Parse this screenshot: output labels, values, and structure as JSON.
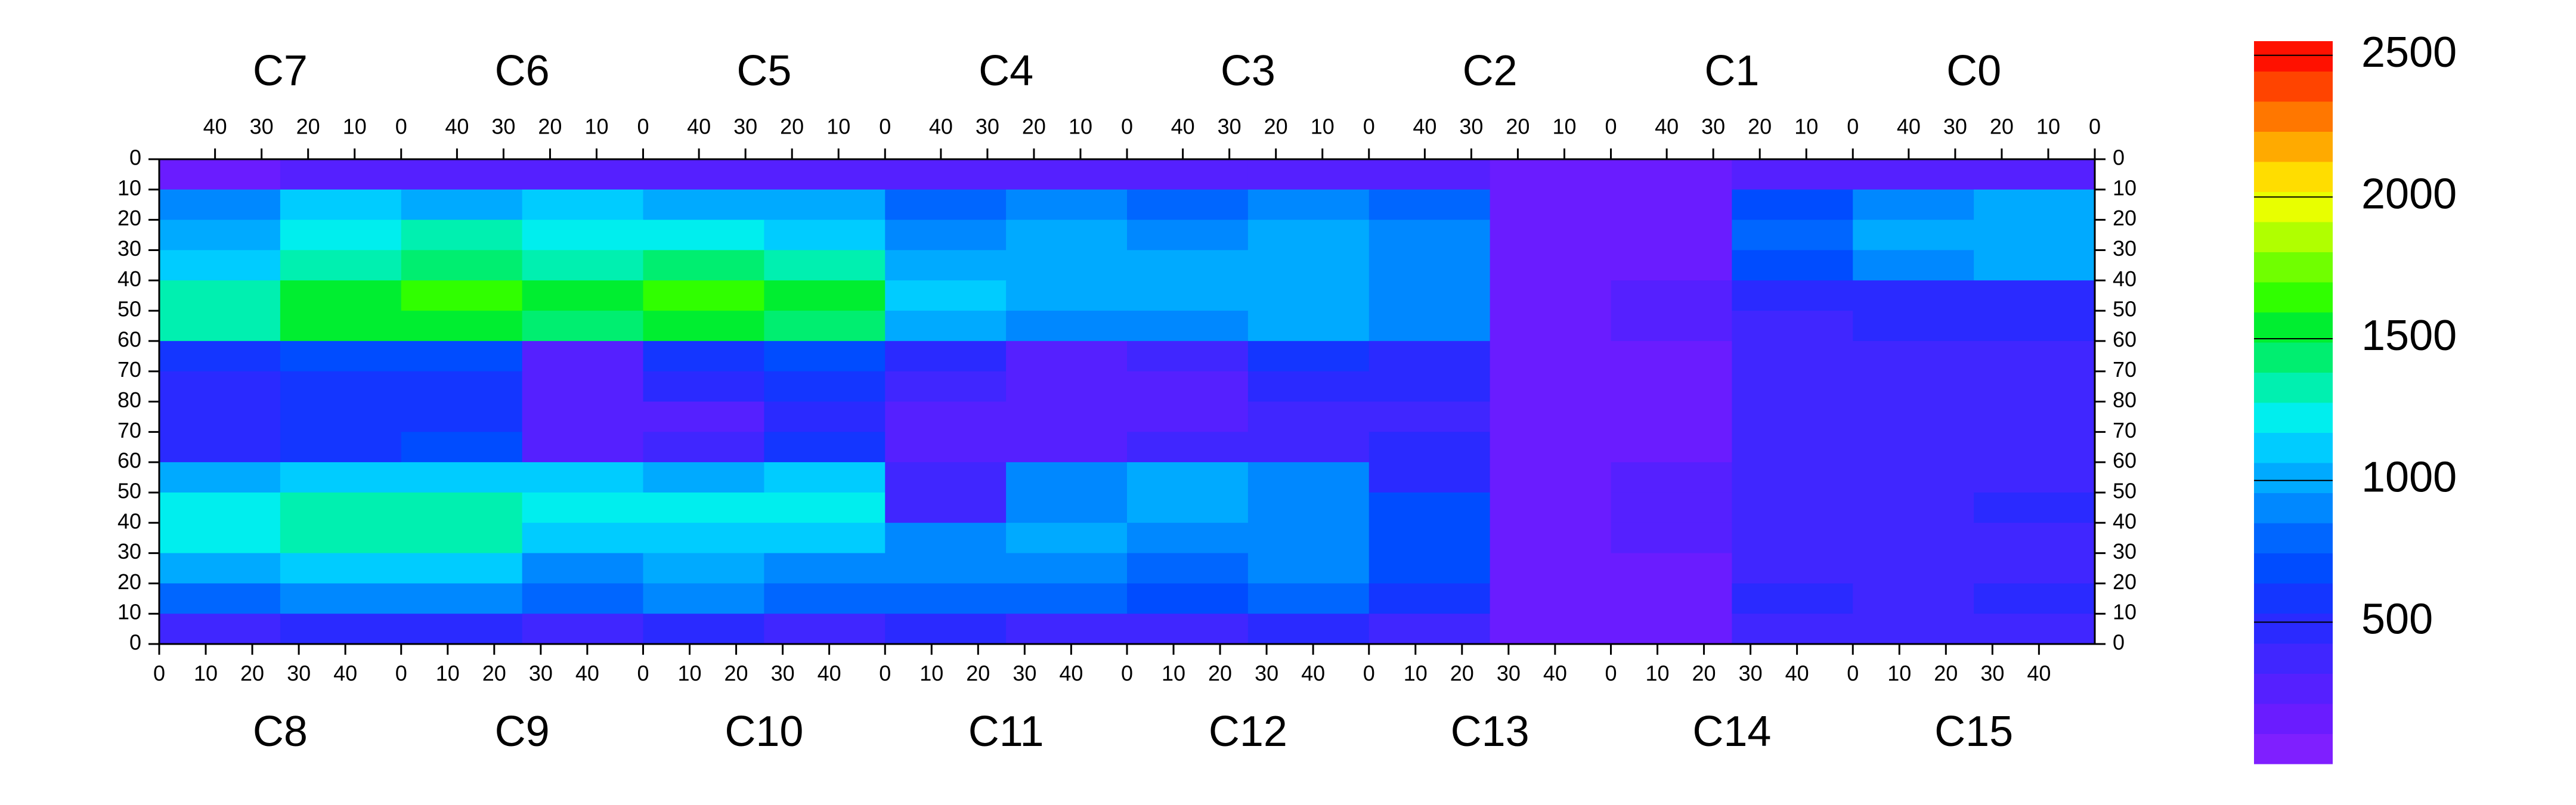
{
  "chart_data": {
    "type": "heatmap",
    "chips_top": [
      "C7",
      "C6",
      "C5",
      "C4",
      "C3",
      "C2",
      "C1",
      "C0"
    ],
    "chips_bottom": [
      "C8",
      "C9",
      "C10",
      "C11",
      "C12",
      "C13",
      "C14",
      "C15"
    ],
    "xlim": [
      0,
      52
    ],
    "xticks": [
      0,
      10,
      20,
      30,
      40
    ],
    "ylim_top": [
      0,
      80
    ],
    "yticks_top": [
      0,
      10,
      20,
      30,
      40,
      50,
      60,
      70,
      80
    ],
    "ylim_bottom": [
      80,
      0
    ],
    "yticks_bottom": [
      70,
      60,
      50,
      40,
      30,
      20,
      10,
      0
    ],
    "zlim": [
      0,
      2550
    ],
    "zticks": [
      500,
      1000,
      1500,
      2000,
      2500
    ],
    "palette": [
      "#7f1fff",
      "#6a1cff",
      "#5520ff",
      "#4026ff",
      "#2a2aff",
      "#1436ff",
      "#004cff",
      "#0066ff",
      "#0088ff",
      "#00aaff",
      "#00ccff",
      "#00eeee",
      "#00f0b0",
      "#00ee70",
      "#00ee30",
      "#30ff00",
      "#70ff00",
      "#b0ff00",
      "#e8ff00",
      "#ffdd00",
      "#ffaa00",
      "#ff7700",
      "#ff4400",
      "#ff1100"
    ],
    "z": [
      [
        200,
        250,
        300,
        300,
        300,
        300,
        300,
        300,
        300,
        300,
        250,
        150,
        150,
        250,
        250,
        300
      ],
      [
        900,
        1100,
        1000,
        1100,
        1000,
        1000,
        800,
        900,
        800,
        900,
        800,
        150,
        150,
        700,
        900,
        1000
      ],
      [
        1000,
        1200,
        1300,
        1200,
        1200,
        1100,
        900,
        1000,
        900,
        1000,
        900,
        120,
        150,
        800,
        1000,
        1000
      ],
      [
        1100,
        1300,
        1400,
        1300,
        1400,
        1300,
        1000,
        1000,
        1000,
        1000,
        900,
        120,
        200,
        700,
        900,
        1000
      ],
      [
        1300,
        1500,
        1600,
        1500,
        1600,
        1500,
        1100,
        1000,
        1000,
        1000,
        900,
        120,
        250,
        450,
        500,
        500
      ],
      [
        1300,
        1500,
        1500,
        1400,
        1500,
        1400,
        1000,
        900,
        900,
        1000,
        900,
        120,
        250,
        400,
        450,
        450
      ],
      [
        600,
        700,
        700,
        300,
        600,
        700,
        500,
        300,
        350,
        600,
        500,
        120,
        200,
        350,
        350,
        400
      ],
      [
        500,
        600,
        600,
        250,
        500,
        600,
        400,
        250,
        300,
        450,
        450,
        120,
        200,
        350,
        350,
        400
      ],
      [
        500,
        600,
        600,
        250,
        300,
        500,
        300,
        250,
        300,
        400,
        400,
        120,
        200,
        350,
        350,
        400
      ],
      [
        500,
        600,
        700,
        300,
        400,
        600,
        300,
        300,
        350,
        400,
        450,
        120,
        200,
        350,
        350,
        400
      ],
      [
        1000,
        1100,
        1100,
        1100,
        1000,
        1100,
        350,
        900,
        1000,
        900,
        500,
        120,
        250,
        400,
        400,
        400
      ],
      [
        1200,
        1300,
        1300,
        1200,
        1200,
        1200,
        400,
        900,
        1000,
        900,
        700,
        120,
        250,
        400,
        400,
        450
      ],
      [
        1200,
        1300,
        1300,
        1100,
        1100,
        1100,
        900,
        1000,
        900,
        900,
        700,
        120,
        250,
        400,
        400,
        400
      ],
      [
        1000,
        1100,
        1100,
        900,
        1000,
        900,
        900,
        900,
        800,
        900,
        700,
        120,
        200,
        400,
        350,
        400
      ],
      [
        800,
        900,
        900,
        800,
        900,
        800,
        800,
        800,
        700,
        800,
        600,
        120,
        200,
        500,
        400,
        450
      ],
      [
        400,
        500,
        500,
        400,
        500,
        400,
        500,
        400,
        400,
        450,
        400,
        120,
        150,
        400,
        350,
        350
      ]
    ]
  }
}
